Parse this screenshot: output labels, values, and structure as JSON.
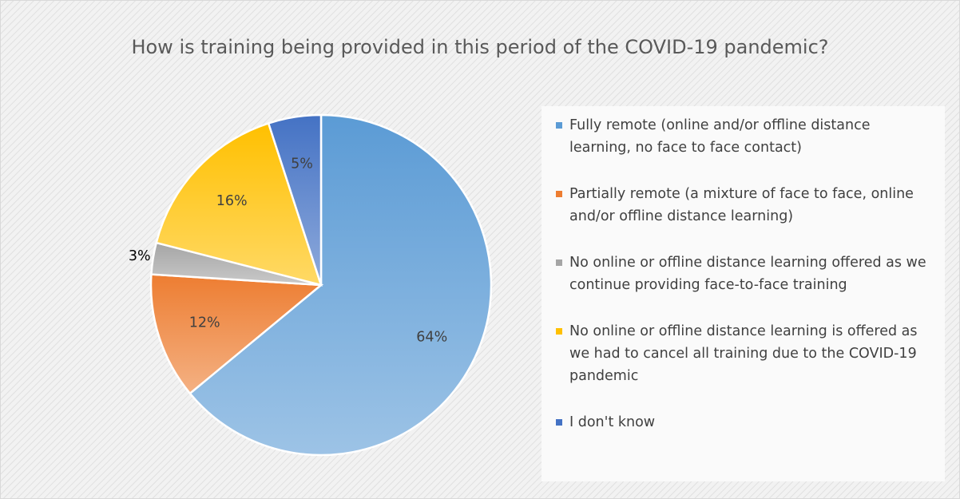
{
  "chart_data": {
    "type": "pie",
    "title": "How is training being provided in this period of the COVID-19 pandemic?",
    "categories": [
      "Fully remote (online and/or offline distance learning, no face to face contact)",
      "Partially remote (a mixture of face to face, online and/or offline distance learning)",
      "No online or offline distance learning offered as we continue providing face-to-face training",
      "No online or offline distance learning is offered as we had to cancel all training due to the COVID-19 pandemic",
      "I don't know"
    ],
    "values": [
      64,
      12,
      3,
      16,
      5
    ],
    "value_labels": [
      "64%",
      "12%",
      "3%",
      "16%",
      "5%"
    ],
    "colors": [
      "#5b9bd5",
      "#ed7d31",
      "#a5a5a5",
      "#ffc000",
      "#4472c4"
    ],
    "legend": "right"
  }
}
